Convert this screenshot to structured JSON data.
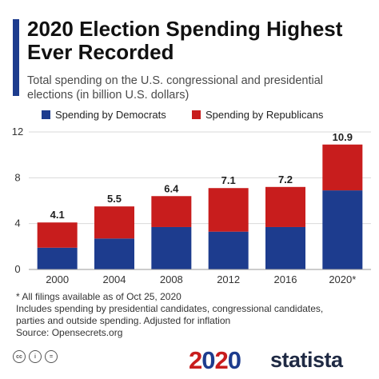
{
  "title": "2020 Election Spending Highest Ever Recorded",
  "subtitle": "Total spending on the U.S. congressional and presidential elections (in billion U.S. dollars)",
  "chart_data": {
    "type": "bar",
    "stacked": true,
    "categories": [
      "2000",
      "2004",
      "2008",
      "2012",
      "2016",
      "2020*"
    ],
    "series": [
      {
        "name": "Spending by Democrats",
        "color": "#1d3c8e",
        "values": [
          1.9,
          2.7,
          3.7,
          3.3,
          3.7,
          6.9
        ]
      },
      {
        "name": "Spending by Republicans",
        "color": "#c81d1d",
        "values": [
          2.2,
          2.8,
          2.7,
          3.8,
          3.5,
          4.0
        ]
      }
    ],
    "totals": [
      "4.1",
      "5.5",
      "6.4",
      "7.1",
      "7.2",
      "10.9"
    ],
    "yticks": [
      "0",
      "4",
      "8",
      "12"
    ],
    "ylim": [
      0,
      12
    ],
    "grid": true,
    "legend_position": "top"
  },
  "notes": [
    "* All filings available as of Oct 25, 2020",
    "Includes spending by presidential candidates, congressional candidates,",
    "parties and outside spending. Adjusted for inflation",
    "Source: Opensecrets.org"
  ],
  "footer": {
    "cc_icons": [
      "cc",
      "i",
      "="
    ],
    "logo_digits": [
      "2",
      "0",
      "2",
      "0"
    ],
    "brand": "statista"
  }
}
